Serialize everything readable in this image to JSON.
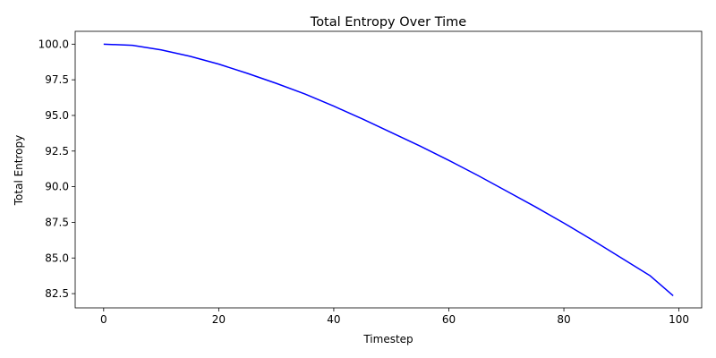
{
  "chart_data": {
    "type": "line",
    "title": "Total Entropy Over Time",
    "xlabel": "Timestep",
    "ylabel": "Total Entropy",
    "xlim": [
      -4.95,
      103.95
    ],
    "ylim": [
      81.5,
      100.9
    ],
    "xticks": [
      0,
      20,
      40,
      60,
      80,
      100
    ],
    "xtick_labels": [
      "0",
      "20",
      "40",
      "60",
      "80",
      "100"
    ],
    "yticks": [
      82.5,
      85.0,
      87.5,
      90.0,
      92.5,
      95.0,
      97.5,
      100.0
    ],
    "ytick_labels": [
      "82.5",
      "85.0",
      "87.5",
      "90.0",
      "92.5",
      "95.0",
      "97.5",
      "100.0"
    ],
    "grid": false,
    "legend": "none",
    "series": [
      {
        "color": "#0000ff",
        "x": [
          0,
          5,
          10,
          15,
          20,
          25,
          30,
          35,
          40,
          45,
          50,
          55,
          60,
          65,
          70,
          75,
          80,
          85,
          90,
          95,
          99
        ],
        "y": [
          100.0,
          99.92,
          99.6,
          99.15,
          98.6,
          97.95,
          97.25,
          96.5,
          95.65,
          94.75,
          93.8,
          92.85,
          91.85,
          90.8,
          89.7,
          88.6,
          87.45,
          86.25,
          85.0,
          83.75,
          82.35
        ]
      }
    ]
  }
}
